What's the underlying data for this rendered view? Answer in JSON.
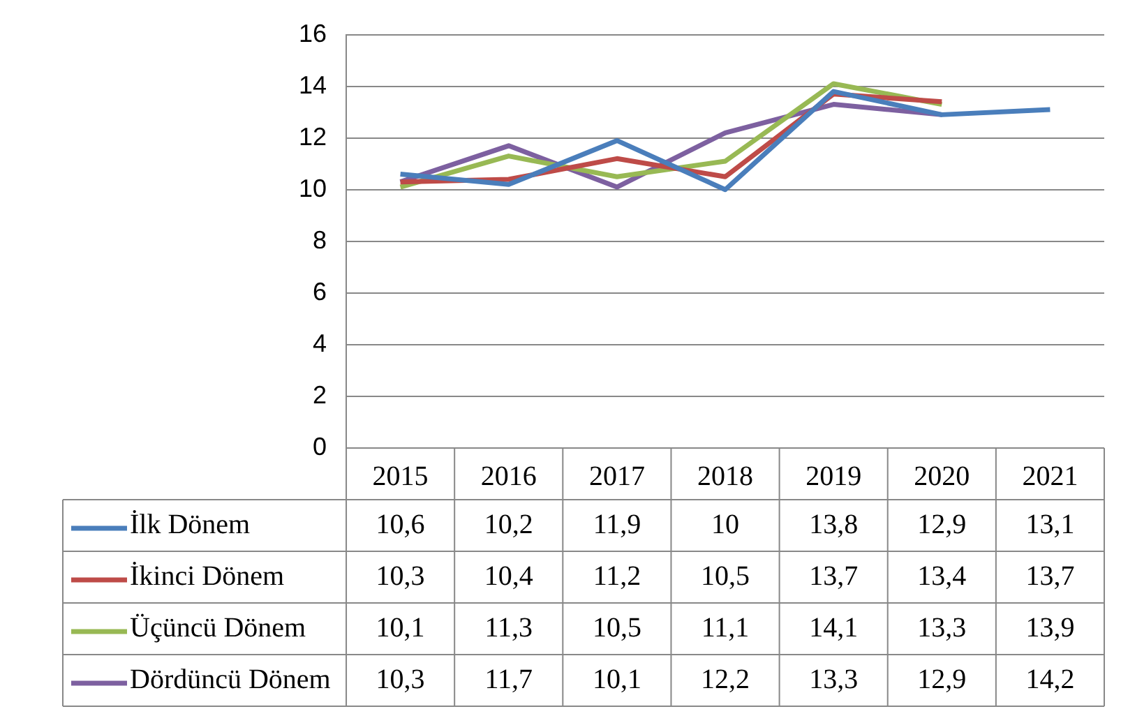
{
  "chart_data": {
    "type": "line",
    "categories": [
      "2015",
      "2016",
      "2017",
      "2018",
      "2019",
      "2020",
      "2021"
    ],
    "series": [
      {
        "name": "İlk Dönem",
        "color": "#4a7ebb",
        "values": [
          10.6,
          10.2,
          11.9,
          10,
          13.8,
          12.9,
          13.1
        ],
        "value_labels": [
          "10,6",
          "10,2",
          "11,9",
          "10",
          "13,8",
          "12,9",
          "13,1"
        ]
      },
      {
        "name": "İkinci Dönem",
        "color": "#be4b48",
        "values": [
          10.3,
          10.4,
          11.2,
          10.5,
          13.7,
          13.4,
          null
        ],
        "value_labels": [
          "10,3",
          "10,4",
          "11,2",
          "10,5",
          "13,7",
          "13,4",
          "13,7"
        ]
      },
      {
        "name": "Üçüncü Dönem",
        "color": "#98b954",
        "values": [
          10.1,
          11.3,
          10.5,
          11.1,
          14.1,
          13.3,
          null
        ],
        "value_labels": [
          "10,1",
          "11,3",
          "10,5",
          "11,1",
          "14,1",
          "13,3",
          "13,9"
        ]
      },
      {
        "name": "Dördüncü Dönem",
        "color": "#7d60a0",
        "values": [
          10.3,
          11.7,
          10.1,
          12.2,
          13.3,
          12.9,
          null
        ],
        "value_labels": [
          "10,3",
          "11,7",
          "10,1",
          "12,2",
          "13,3",
          "12,9",
          "14,2"
        ]
      }
    ],
    "ylim": [
      0,
      16
    ],
    "yticks": [
      0,
      2,
      4,
      6,
      8,
      10,
      12,
      14,
      16
    ],
    "grid": "y",
    "legend": "bottom",
    "marker": "none",
    "line_style": "solid"
  }
}
